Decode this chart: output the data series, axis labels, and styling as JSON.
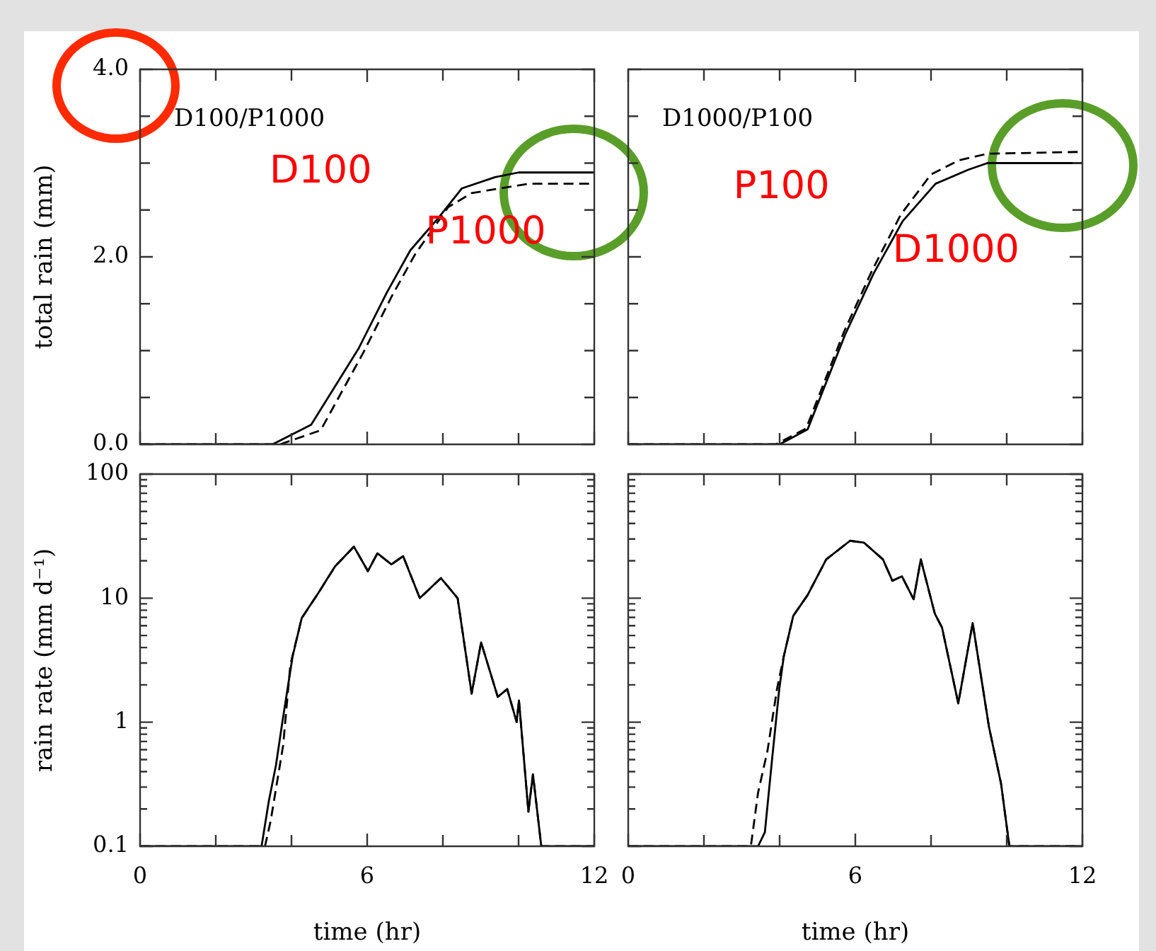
{
  "chart_data": [
    {
      "type": "line",
      "title": "D100/P1000",
      "ylabel": "total rain (mm)",
      "xlim": [
        0,
        12
      ],
      "ylim": [
        0,
        4
      ],
      "xticks": [
        0,
        {
          "value": 2,
          "label": null
        },
        {
          "value": 4,
          "label": null
        },
        6,
        {
          "value": 8,
          "label": null
        },
        {
          "value": 10,
          "label": null
        },
        12
      ],
      "yticks": [
        {
          "value": 0,
          "label": "0.0"
        },
        {
          "value": 0.5,
          "label": null
        },
        {
          "value": 1,
          "label": null
        },
        {
          "value": 1.5,
          "label": null
        },
        {
          "value": 2,
          "label": "2.0"
        },
        {
          "value": 2.5,
          "label": null
        },
        {
          "value": 3,
          "label": null
        },
        {
          "value": 3.5,
          "label": null
        },
        {
          "value": 4,
          "label": "4.0"
        }
      ],
      "tick_labels": "y",
      "marker": "none",
      "series": [
        {
          "color": "#000000",
          "line_style": "solid",
          "x": [
            0,
            3.5,
            4.52,
            5.77,
            6.52,
            7.14,
            7.89,
            8.5,
            9.38,
            10,
            12
          ],
          "values": [
            0,
            0,
            0.21,
            1.02,
            1.62,
            2.07,
            2.42,
            2.73,
            2.85,
            2.9,
            2.9
          ]
        },
        {
          "color": "#000000",
          "line_style": "dashed",
          "x": [
            0,
            3.7,
            4.77,
            5.9,
            6.65,
            7.27,
            8.14,
            8.76,
            9.51,
            10.26,
            12
          ],
          "values": [
            0,
            0,
            0.15,
            0.98,
            1.58,
            2.03,
            2.53,
            2.68,
            2.73,
            2.78,
            2.78
          ]
        }
      ],
      "annotations": [
        "D100",
        "P1000"
      ]
    },
    {
      "type": "line",
      "title": "D1000/P100",
      "xlim": [
        0,
        12
      ],
      "ylim": [
        0,
        4
      ],
      "xticks": [
        0,
        {
          "value": 2,
          "label": null
        },
        {
          "value": 4,
          "label": null
        },
        6,
        {
          "value": 8,
          "label": null
        },
        {
          "value": 10,
          "label": null
        },
        12
      ],
      "yticks": [
        0,
        {
          "value": 0.5,
          "label": null
        },
        {
          "value": 1,
          "label": null
        },
        {
          "value": 1.5,
          "label": null
        },
        2,
        {
          "value": 2.5,
          "label": null
        },
        {
          "value": 3,
          "label": null
        },
        {
          "value": 3.5,
          "label": null
        },
        4
      ],
      "tick_labels": false,
      "marker": "none",
      "series": [
        {
          "color": "#000000",
          "line_style": "solid",
          "x": [
            0,
            4.0,
            4.74,
            5.73,
            6.48,
            7.25,
            8.12,
            8.99,
            9.49,
            12
          ],
          "values": [
            0,
            0,
            0.16,
            1.17,
            1.82,
            2.38,
            2.78,
            2.93,
            3.0,
            3.0
          ]
        },
        {
          "color": "#000000",
          "line_style": "dashed",
          "x": [
            0,
            3.9,
            4.7,
            5.7,
            6.45,
            7.2,
            8.0,
            8.74,
            9.49,
            12
          ],
          "values": [
            0,
            0,
            0.17,
            1.2,
            1.86,
            2.45,
            2.88,
            3.03,
            3.1,
            3.12
          ]
        }
      ],
      "annotations": [
        "P100",
        "D1000"
      ]
    },
    {
      "type": "line",
      "xlabel": "time (hr)",
      "ylabel": "rain rate (mm d⁻¹)",
      "log": true,
      "xlim": [
        0,
        12
      ],
      "ylim": [
        0.1,
        100
      ],
      "xticks": [
        0,
        {
          "value": 2,
          "label": null
        },
        {
          "value": 4,
          "label": null
        },
        6,
        {
          "value": 8,
          "label": null
        },
        {
          "value": 10,
          "label": null
        },
        12
      ],
      "yticks": [
        0.1,
        {
          "value": 0.2,
          "label": null
        },
        {
          "value": 0.3,
          "label": null
        },
        {
          "value": 0.4,
          "label": null
        },
        {
          "value": 0.5,
          "label": null
        },
        {
          "value": 0.6,
          "label": null
        },
        {
          "value": 0.7,
          "label": null
        },
        {
          "value": 0.8,
          "label": null
        },
        {
          "value": 0.9,
          "label": null
        },
        1,
        {
          "value": 2,
          "label": null
        },
        {
          "value": 3,
          "label": null
        },
        {
          "value": 4,
          "label": null
        },
        {
          "value": 5,
          "label": null
        },
        {
          "value": 6,
          "label": null
        },
        {
          "value": 7,
          "label": null
        },
        {
          "value": 8,
          "label": null
        },
        {
          "value": 9,
          "label": null
        },
        10,
        {
          "value": 20,
          "label": null
        },
        {
          "value": 30,
          "label": null
        },
        {
          "value": 40,
          "label": null
        },
        {
          "value": 50,
          "label": null
        },
        {
          "value": 60,
          "label": null
        },
        {
          "value": 70,
          "label": null
        },
        {
          "value": 80,
          "label": null
        },
        {
          "value": 90,
          "label": null
        },
        100
      ],
      "marker": "none",
      "series": [
        {
          "color": "#000000",
          "line_style": "solid",
          "x": [
            0,
            3.21,
            3.4,
            3.59,
            3.75,
            4.03,
            4.27,
            4.71,
            5.15,
            5.65,
            6.02,
            6.27,
            6.64,
            6.95,
            7.39,
            7.95,
            8.39,
            8.76,
            9.01,
            9.45,
            9.7,
            9.95,
            10.01,
            10.26,
            10.38,
            10.6,
            12
          ],
          "values": [
            0.1,
            0.1,
            0.23,
            0.45,
            0.96,
            3.4,
            6.9,
            11,
            18,
            26,
            16.5,
            23,
            18.7,
            21.8,
            10,
            14.5,
            10,
            1.7,
            4.4,
            1.6,
            1.85,
            1.0,
            1.5,
            0.19,
            0.38,
            0.1,
            0.1
          ]
        },
        {
          "color": "#000000",
          "line_style": "dashed",
          "x": [
            0,
            3.3,
            3.45,
            3.78,
            3.97,
            4.27,
            4.71,
            5.15,
            5.65,
            6.02,
            6.27,
            6.64,
            6.95,
            7.39,
            7.95,
            8.39,
            8.76,
            9.01,
            9.45,
            9.7,
            9.95,
            10.01,
            10.26,
            10.38,
            10.6,
            12
          ],
          "values": [
            0.1,
            0.1,
            0.16,
            0.65,
            2.9,
            6.9,
            11,
            18,
            26,
            16.5,
            23,
            18.7,
            21.8,
            10,
            14.5,
            10,
            1.7,
            4.4,
            1.6,
            1.85,
            1.0,
            1.5,
            0.19,
            0.38,
            0.1,
            0.1
          ]
        }
      ]
    },
    {
      "type": "line",
      "xlabel": "time (hr)",
      "log": true,
      "xlim": [
        0,
        12
      ],
      "ylim": [
        0.1,
        100
      ],
      "xticks": [
        0,
        {
          "value": 2,
          "label": null
        },
        {
          "value": 4,
          "label": null
        },
        6,
        {
          "value": 8,
          "label": null
        },
        {
          "value": 10,
          "label": null
        },
        12
      ],
      "yticks": [
        0.1,
        {
          "value": 0.2,
          "label": null
        },
        {
          "value": 0.3,
          "label": null
        },
        {
          "value": 0.4,
          "label": null
        },
        {
          "value": 0.5,
          "label": null
        },
        {
          "value": 0.6,
          "label": null
        },
        {
          "value": 0.7,
          "label": null
        },
        {
          "value": 0.8,
          "label": null
        },
        {
          "value": 0.9,
          "label": null
        },
        1,
        {
          "value": 2,
          "label": null
        },
        {
          "value": 3,
          "label": null
        },
        {
          "value": 4,
          "label": null
        },
        {
          "value": 5,
          "label": null
        },
        {
          "value": 6,
          "label": null
        },
        {
          "value": 7,
          "label": null
        },
        {
          "value": 8,
          "label": null
        },
        {
          "value": 9,
          "label": null
        },
        10,
        {
          "value": 20,
          "label": null
        },
        {
          "value": 30,
          "label": null
        },
        {
          "value": 40,
          "label": null
        },
        {
          "value": 50,
          "label": null
        },
        {
          "value": 60,
          "label": null
        },
        {
          "value": 70,
          "label": null
        },
        {
          "value": 80,
          "label": null
        },
        {
          "value": 90,
          "label": null
        },
        100
      ],
      "tick_labels": "x",
      "marker": "none",
      "series": [
        {
          "color": "#000000",
          "line_style": "solid",
          "x": [
            0,
            3.43,
            3.61,
            3.8,
            3.99,
            4.11,
            4.36,
            4.74,
            5.23,
            5.86,
            6.23,
            6.73,
            6.98,
            7.23,
            7.54,
            7.73,
            8.1,
            8.29,
            8.72,
            9.1,
            9.53,
            9.85,
            10.07,
            12
          ],
          "values": [
            0.1,
            0.1,
            0.13,
            0.5,
            1.85,
            3.4,
            7.2,
            10.6,
            20.5,
            29,
            28,
            20.5,
            13.8,
            15,
            9.8,
            20.5,
            7.5,
            5.8,
            1.42,
            6.3,
            0.92,
            0.32,
            0.1,
            0.1
          ]
        },
        {
          "color": "#000000",
          "line_style": "dashed",
          "x": [
            0,
            3.24,
            3.43,
            3.68,
            3.93,
            4.11,
            4.36,
            4.74,
            5.23,
            5.86,
            6.23,
            6.73,
            6.98,
            7.23,
            7.54,
            7.73,
            8.1,
            8.29,
            8.72,
            9.1,
            9.53,
            9.85,
            10.07,
            12
          ],
          "values": [
            0.1,
            0.1,
            0.27,
            0.59,
            1.85,
            3.4,
            7.2,
            10.6,
            20.5,
            29,
            28,
            20.5,
            13.8,
            15,
            9.8,
            20.5,
            7.5,
            5.8,
            1.42,
            6.3,
            0.92,
            0.32,
            0.1,
            0.1
          ]
        }
      ]
    }
  ]
}
